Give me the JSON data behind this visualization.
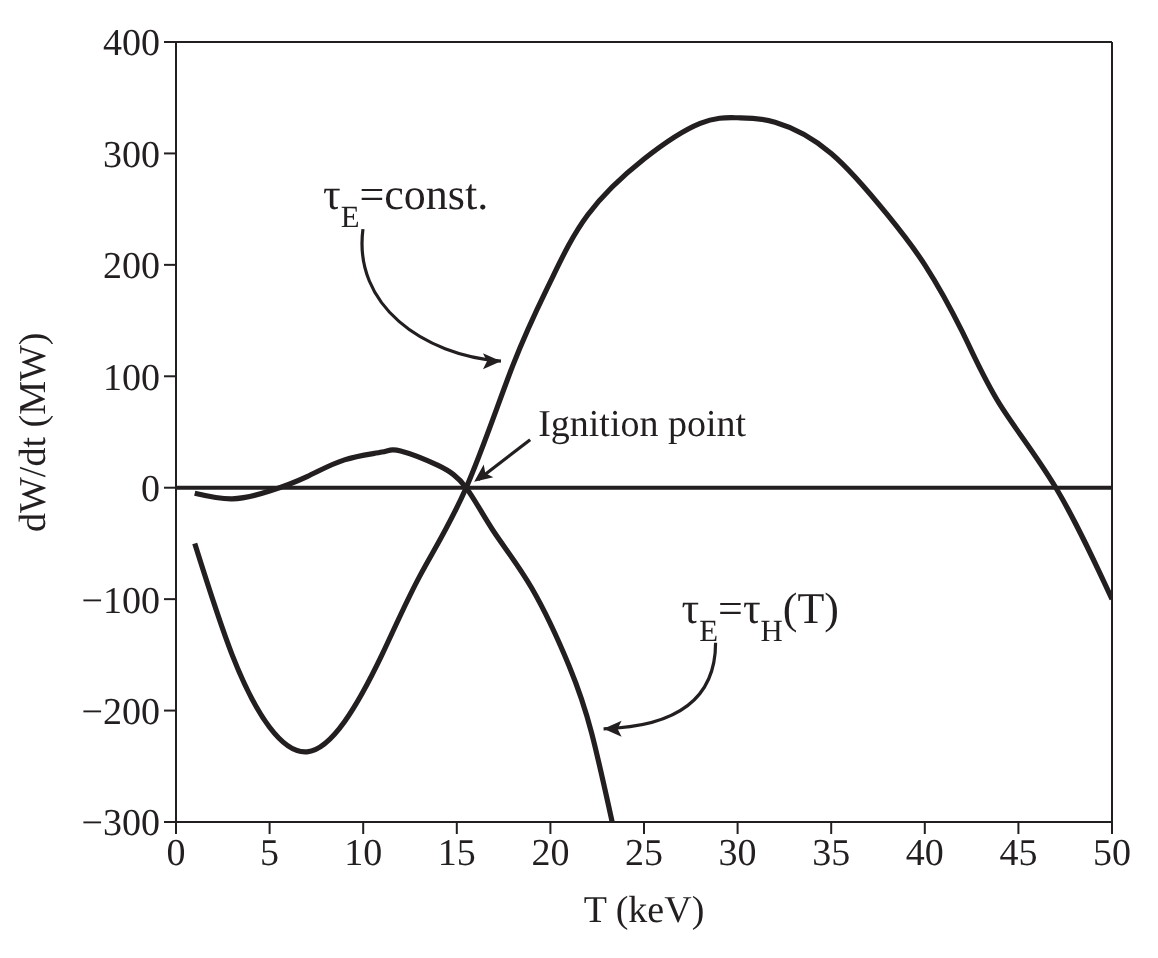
{
  "chart_data": {
    "type": "line",
    "xlabel": "T (keV)",
    "ylabel": "dW/dt (MW)",
    "xlim": [
      0,
      50
    ],
    "ylim": [
      -300,
      400
    ],
    "xticks": [
      0,
      5,
      10,
      15,
      20,
      25,
      30,
      35,
      40,
      45,
      50
    ],
    "yticks": [
      -300,
      -200,
      -100,
      0,
      100,
      200,
      300,
      400
    ],
    "marker": "none",
    "line_style": "solid",
    "ref_lines": [
      {
        "axis": "y",
        "value": 0,
        "color": "#231f20"
      }
    ],
    "annotations": [
      {
        "text": "Ignition point",
        "x": 15.5,
        "y": 0
      }
    ],
    "series": [
      {
        "name": "τ$_{E}$=const.",
        "color": "#231f20",
        "x": [
          1,
          3,
          5,
          7,
          9,
          11,
          13,
          15.5,
          18,
          20,
          22,
          25,
          28,
          30,
          32,
          35,
          38,
          40,
          42,
          44,
          47,
          50
        ],
        "values": [
          -50,
          -150,
          -215,
          -237,
          -210,
          -150,
          -80,
          0,
          110,
          185,
          245,
          295,
          327,
          332,
          328,
          300,
          245,
          200,
          140,
          75,
          0,
          -100
        ]
      },
      {
        "name": "τ$_{E}$=τ$_{H}$(T)",
        "color": "#231f20",
        "x": [
          1,
          3,
          5,
          7,
          9,
          11,
          12,
          14,
          15.5,
          17,
          19,
          21,
          22.2,
          23.3
        ],
        "values": [
          -5,
          -10,
          -3,
          10,
          25,
          32,
          33,
          20,
          0,
          -40,
          -90,
          -160,
          -220,
          -300
        ]
      }
    ]
  }
}
